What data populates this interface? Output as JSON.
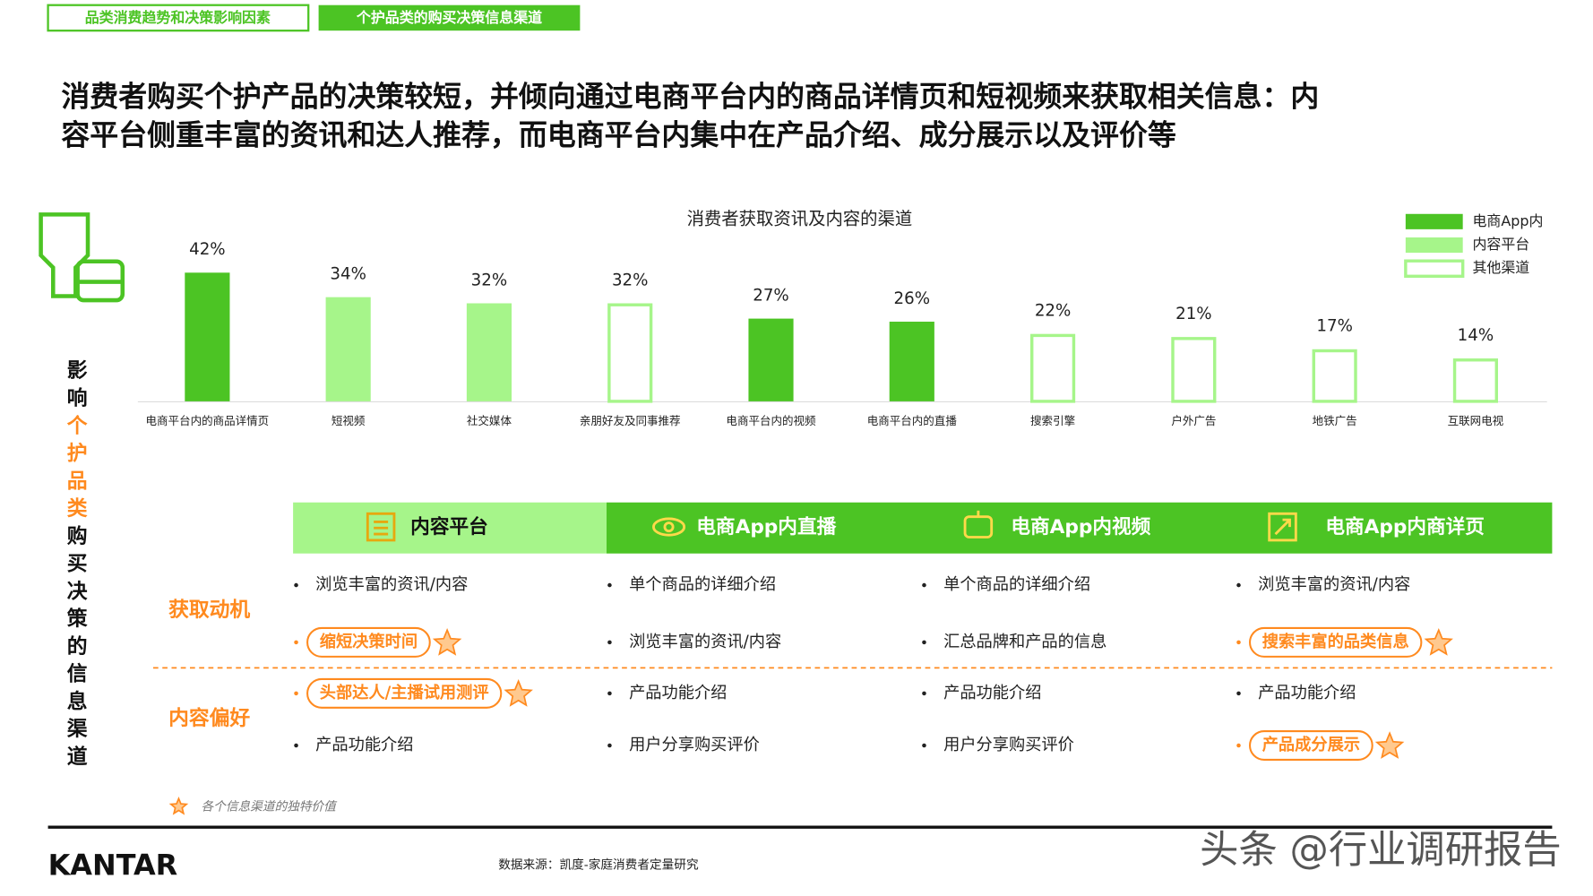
{
  "tabs": [
    "品类消费趋势和决策影响因素",
    "个护品类的购买决策信息渠道"
  ],
  "headline": [
    "消费者购买个护产品的决策较短，并倾向通过电商平台内的商品详情页和短视频来获取相关信息：内",
    "容平台侧重丰富的资讯和达人推荐，而电商平台内集中在产品介绍、成分展示以及评价等"
  ],
  "side_label": [
    "影响",
    "个护品类",
    "购买决策的信息渠道"
  ],
  "chart_data": {
    "type": "bar",
    "title": "消费者获取资讯及内容的渠道",
    "categories": [
      "电商平台内的商品详情页",
      "短视频",
      "社交媒体",
      "亲朋好友及同事推荐",
      "电商平台内的视频",
      "电商平台内的直播",
      "搜索引擎",
      "户外广告",
      "地铁广告",
      "互联网电视"
    ],
    "series": [
      {
        "name": "电商App内",
        "color": "#4cc424",
        "style": "filled",
        "values": [
          42,
          null,
          null,
          null,
          27,
          26,
          null,
          null,
          null,
          null
        ],
        "value_labels": [
          "42%",
          null,
          null,
          null,
          "27%",
          "26%",
          null,
          null,
          null,
          null
        ]
      },
      {
        "name": "内容平台",
        "color": "#a6f58a",
        "style": "filled",
        "values": [
          null,
          34,
          32,
          null,
          null,
          null,
          null,
          null,
          null,
          null
        ],
        "value_labels": [
          null,
          "34%",
          "32%",
          null,
          null,
          null,
          null,
          null,
          null,
          null
        ]
      },
      {
        "name": "其他渠道",
        "color": "#a6f58a",
        "style": "outline",
        "values": [
          null,
          null,
          null,
          32,
          null,
          null,
          22,
          21,
          17,
          14
        ],
        "value_labels": [
          null,
          null,
          null,
          "32%",
          null,
          null,
          "22%",
          "21%",
          "17%",
          "14%"
        ]
      }
    ],
    "legend": "top-right"
  },
  "table": {
    "columns": [
      "内容平台",
      "电商App内直播",
      "电商App内视频",
      "电商App内商详页"
    ],
    "row_groups": [
      {
        "label": "获取动机",
        "rows": [
          [
            "浏览丰富的资讯/内容",
            "单个商品的详细介绍",
            "单个商品的详细介绍",
            "浏览丰富的资讯/内容"
          ],
          [
            {
              "text": "缩短决策时间",
              "highlight": true
            },
            "浏览丰富的资讯/内容",
            "汇总品牌和产品的信息",
            {
              "text": "搜索丰富的品类信息",
              "highlight": true
            }
          ]
        ]
      },
      {
        "label": "内容偏好",
        "rows": [
          [
            {
              "text": "头部达人/主播试用测评",
              "highlight": true
            },
            "产品功能介绍",
            "产品功能介绍",
            "产品功能介绍"
          ],
          [
            "产品功能介绍",
            "用户分享购买评价",
            "用户分享购买评价",
            {
              "text": "产品成分展示",
              "highlight": true
            }
          ]
        ]
      }
    ]
  },
  "footnote": "各个信息渠道的独特价值",
  "logo": "KANTAR",
  "source": "数据来源：凯度-家庭消费者定量研究",
  "watermark": "头条 @行业调研报告"
}
